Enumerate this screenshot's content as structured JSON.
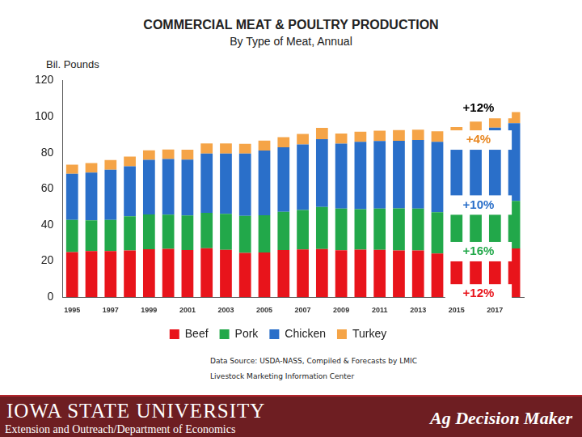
{
  "chart_data": {
    "type": "bar",
    "title": "COMMERCIAL MEAT & POULTRY PRODUCTION",
    "subtitle": "By Type of Meat, Annual",
    "y_label": "Bil. Pounds",
    "categories": [
      "1995",
      null,
      "1997",
      null,
      "1999",
      null,
      "2001",
      null,
      "2003",
      null,
      "2005",
      null,
      "2007",
      null,
      "2009",
      null,
      "2011",
      null,
      "2013",
      null,
      "2015",
      null,
      "2017",
      null
    ],
    "series": [
      {
        "name": "Beef",
        "color": "#e8141b",
        "values": [
          25.0,
          25.5,
          25.5,
          25.8,
          26.5,
          26.8,
          26.1,
          27.1,
          26.2,
          24.5,
          24.7,
          26.1,
          26.4,
          26.6,
          26.0,
          26.3,
          26.2,
          25.9,
          25.8,
          24.2,
          23.7,
          25.2,
          26.2,
          27.0
        ]
      },
      {
        "name": "Pork",
        "color": "#22a84a",
        "values": [
          17.8,
          17.0,
          17.3,
          19.0,
          19.3,
          18.9,
          19.1,
          19.6,
          19.9,
          20.5,
          20.7,
          21.1,
          21.9,
          23.3,
          23.0,
          22.4,
          22.8,
          23.3,
          23.2,
          22.8,
          24.5,
          25.0,
          25.6,
          26.3
        ]
      },
      {
        "name": "Chicken",
        "color": "#2a6fc9",
        "values": [
          25.5,
          26.5,
          27.7,
          27.7,
          30.2,
          30.8,
          31.0,
          32.8,
          33.4,
          34.5,
          35.8,
          35.8,
          36.2,
          37.6,
          36.0,
          37.3,
          37.5,
          37.4,
          38.0,
          39.0,
          40.0,
          41.0,
          42.0,
          43.0
        ]
      },
      {
        "name": "Turkey",
        "color": "#f5a447",
        "values": [
          5.0,
          5.3,
          5.4,
          5.3,
          5.3,
          5.3,
          5.4,
          5.6,
          5.6,
          5.4,
          5.5,
          5.6,
          5.9,
          6.2,
          5.6,
          5.6,
          5.7,
          5.9,
          5.7,
          5.8,
          6.0,
          6.0,
          6.1,
          6.2
        ]
      }
    ],
    "ylim": [
      0,
      120
    ],
    "yticks": [
      0,
      20,
      40,
      60,
      80,
      100,
      120
    ],
    "stacked": true,
    "grid": false,
    "legend": "bottom",
    "annotations": [
      {
        "text": "+12%",
        "color": "#000000"
      },
      {
        "text": "+4%",
        "color": "#e8861f"
      },
      {
        "text": "+10%",
        "color": "#2a6fc9"
      },
      {
        "text": "+16%",
        "color": "#22a84a"
      },
      {
        "text": "+12%",
        "color": "#e8141b"
      }
    ],
    "source": [
      "Data Source: USDA-NASS, Compiled & Forecasts by LMIC",
      "Livestock Marketing Information Center"
    ]
  },
  "footer": {
    "university": "IOWA STATE UNIVERSITY",
    "department": "Extension and Outreach/Department of Economics",
    "brand": "Ag Decision Maker"
  }
}
